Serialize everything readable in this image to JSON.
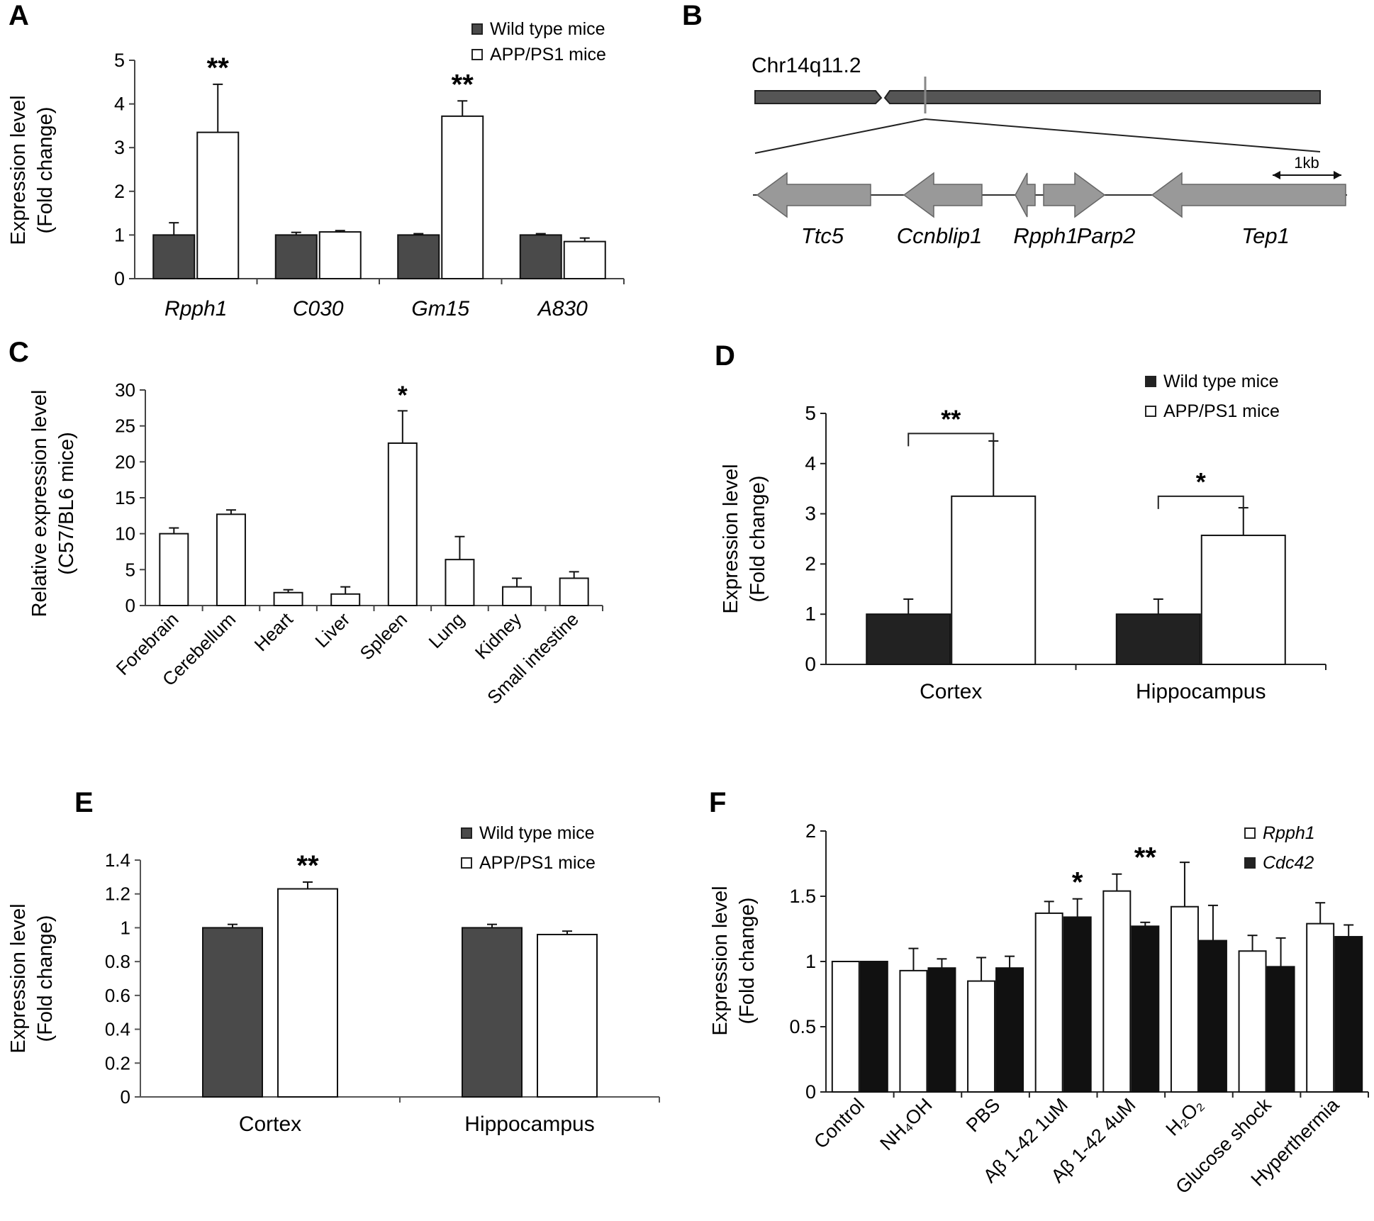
{
  "figure": {
    "panel_letters": [
      "A",
      "B",
      "C",
      "D",
      "E",
      "F"
    ]
  },
  "chart_data": [
    {
      "panel": "A",
      "type": "bar",
      "ylabel_line1": "Expression level",
      "ylabel_line2": "(Fold change)",
      "ylim": [
        0,
        5
      ],
      "yticks": [
        "0",
        "1",
        "2",
        "3",
        "4",
        "5"
      ],
      "categories": [
        "Rpph1",
        "C030",
        "Gm15",
        "A830"
      ],
      "italic_categories": true,
      "series": [
        {
          "name": "Wild type mice",
          "color": "#4a4a4a",
          "values": [
            1.0,
            1.0,
            1.0,
            1.0
          ],
          "errors": [
            0.28,
            0.06,
            0.03,
            0.03
          ]
        },
        {
          "name": "APP/PS1 mice",
          "color": "#ffffff",
          "values": [
            3.35,
            1.07,
            3.72,
            0.85
          ],
          "errors": [
            1.1,
            0.03,
            0.35,
            0.08
          ]
        }
      ],
      "annotations": [
        {
          "category_index": 0,
          "text": "**"
        },
        {
          "category_index": 2,
          "text": "**"
        }
      ]
    },
    {
      "panel": "C",
      "type": "bar",
      "ylabel_line1": "Relative expression level",
      "ylabel_line2": "(C57/BL6 mice)",
      "ylim": [
        0,
        30
      ],
      "yticks": [
        "0",
        "5",
        "10",
        "15",
        "20",
        "25",
        "30"
      ],
      "categories": [
        "Forebrain",
        "Cerebellum",
        "Heart",
        "Liver",
        "Spleen",
        "Lung",
        "Kidney",
        "Small intestine"
      ],
      "series": [
        {
          "name": "Expression",
          "color": "#ffffff",
          "values": [
            10.0,
            12.7,
            1.8,
            1.6,
            22.6,
            6.4,
            2.6,
            3.8
          ],
          "errors": [
            0.8,
            0.6,
            0.4,
            1.0,
            4.5,
            3.2,
            1.2,
            0.9
          ]
        }
      ],
      "annotations": [
        {
          "category_index": 4,
          "text": "*"
        }
      ]
    },
    {
      "panel": "D",
      "type": "bar",
      "ylabel_line1": "Expression level",
      "ylabel_line2": "(Fold change)",
      "ylim": [
        0,
        5
      ],
      "yticks": [
        "0",
        "1",
        "2",
        "3",
        "4",
        "5"
      ],
      "categories": [
        "Cortex",
        "Hippocampus"
      ],
      "series": [
        {
          "name": "Wild type mice",
          "color": "#222222",
          "values": [
            1.0,
            1.0
          ],
          "errors": [
            0.3,
            0.3
          ]
        },
        {
          "name": "APP/PS1 mice",
          "color": "#ffffff",
          "values": [
            3.35,
            2.57
          ],
          "errors": [
            1.1,
            0.55
          ]
        }
      ],
      "annotations": [
        {
          "category_index": 0,
          "text": "**",
          "bracket": true
        },
        {
          "category_index": 1,
          "text": "*",
          "bracket": true
        }
      ]
    },
    {
      "panel": "E",
      "type": "bar",
      "ylabel_line1": "Expression level",
      "ylabel_line2": "(Fold change)",
      "ylim": [
        0,
        1.4
      ],
      "yticks": [
        "0",
        "0.2",
        "0.4",
        "0.6",
        "0.8",
        "1",
        "1.2",
        "1.4"
      ],
      "categories": [
        "Cortex",
        "Hippocampus"
      ],
      "series": [
        {
          "name": "Wild type mice",
          "color": "#4a4a4a",
          "values": [
            1.0,
            1.0
          ],
          "errors": [
            0.02,
            0.02
          ]
        },
        {
          "name": "APP/PS1 mice",
          "color": "#ffffff",
          "values": [
            1.23,
            0.96
          ],
          "errors": [
            0.04,
            0.02
          ]
        }
      ],
      "annotations": [
        {
          "category_index": 0,
          "text": "**"
        }
      ]
    },
    {
      "panel": "F",
      "type": "bar",
      "ylabel_line1": "Expression level",
      "ylabel_line2": "(Fold change)",
      "ylim": [
        0,
        2
      ],
      "yticks": [
        "0",
        "0.5",
        "1",
        "1.5",
        "2"
      ],
      "categories": [
        "Control",
        "NH₄OH",
        "PBS",
        "Aβ 1-42 1uM",
        "Aβ 1-42 4uM",
        "H₂O₂",
        "Glucose shock",
        "Hyperthermia"
      ],
      "series": [
        {
          "name": "Rpph1",
          "color": "#ffffff",
          "values": [
            1.0,
            0.93,
            0.85,
            1.37,
            1.54,
            1.42,
            1.08,
            1.29
          ],
          "errors": [
            0.0,
            0.17,
            0.18,
            0.09,
            0.13,
            0.34,
            0.12,
            0.16
          ]
        },
        {
          "name": "Cdc42",
          "color": "#111111",
          "values": [
            1.0,
            0.95,
            0.95,
            1.34,
            1.27,
            1.16,
            0.96,
            1.19
          ],
          "errors": [
            0.0,
            0.07,
            0.09,
            0.14,
            0.03,
            0.27,
            0.22,
            0.09
          ]
        }
      ],
      "annotations": [
        {
          "category_index": 3,
          "text": "*"
        },
        {
          "category_index": 4,
          "text": "**"
        }
      ]
    }
  ],
  "diagram_b": {
    "chromosome_label": "Chr14q11.2",
    "scale_label": "1kb",
    "genes": [
      "Ttc5",
      "Ccnblip1",
      "Rpph1",
      "Parp2",
      "Tep1"
    ]
  }
}
